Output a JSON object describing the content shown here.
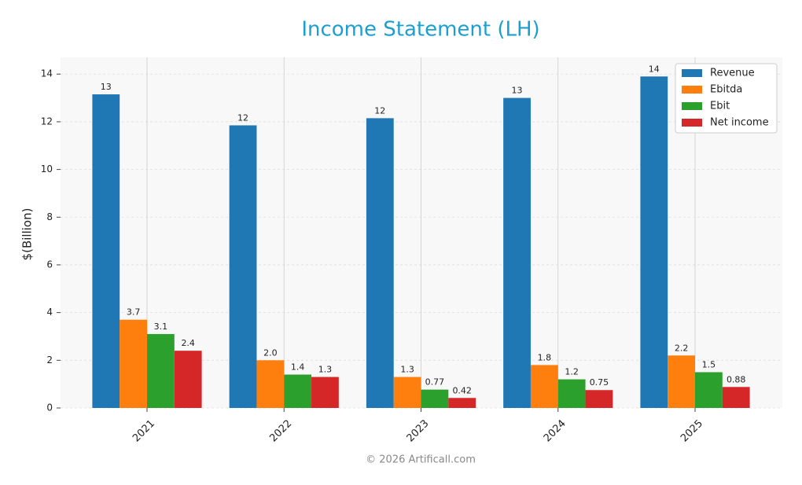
{
  "chart_data": {
    "type": "bar",
    "title": "Income Statement (LH)",
    "y_label": "$(Billion)",
    "footer": "© 2026 Artificall.com",
    "categories": [
      "2021",
      "2022",
      "2023",
      "2024",
      "2025"
    ],
    "series": [
      {
        "name": "Revenue",
        "color": "#1f77b4",
        "values": [
          13.15,
          11.85,
          12.15,
          13.0,
          13.9
        ],
        "value_labels": [
          "13",
          "12",
          "12",
          "13",
          "14"
        ]
      },
      {
        "name": "Ebitda",
        "color": "#ff7f0e",
        "values": [
          3.7,
          2.0,
          1.3,
          1.8,
          2.2
        ],
        "value_labels": [
          "3.7",
          "2.0",
          "1.3",
          "1.8",
          "2.2"
        ]
      },
      {
        "name": "Ebit",
        "color": "#2ca02c",
        "values": [
          3.1,
          1.4,
          0.77,
          1.2,
          1.5
        ],
        "value_labels": [
          "3.1",
          "1.4",
          "0.77",
          "1.2",
          "1.5"
        ]
      },
      {
        "name": "Net income",
        "color": "#d62728",
        "values": [
          2.4,
          1.3,
          0.42,
          0.75,
          0.88
        ],
        "value_labels": [
          "2.4",
          "1.3",
          "0.42",
          "0.75",
          "0.88"
        ]
      }
    ],
    "ylim": [
      0,
      14.7
    ],
    "yticks": [
      0,
      2,
      4,
      6,
      8,
      10,
      12,
      14
    ],
    "grid": true,
    "legend": "upper right"
  }
}
